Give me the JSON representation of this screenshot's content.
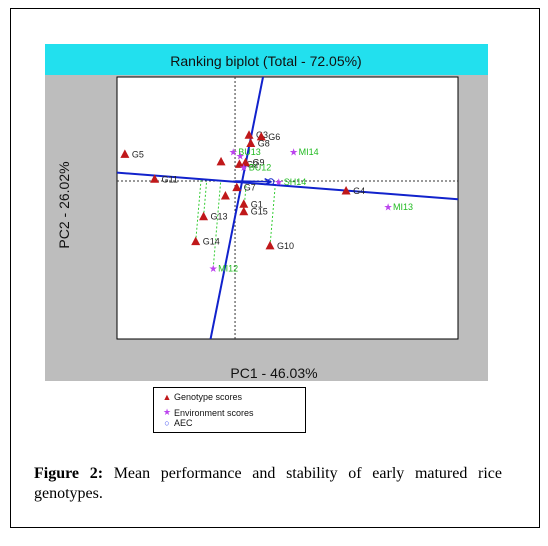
{
  "chart_data": {
    "type": "scatter",
    "title": "Ranking biplot (Total - 72.05%)",
    "xlabel": "PC1 - 46.03%",
    "ylabel": "PC2 - 26.02%",
    "xlim": [
      -1.35,
      2.55
    ],
    "ylim": [
      -1.9,
      1.25
    ],
    "colors": {
      "title_band": "#22e0ee",
      "outer_panel": "#bdbdbd",
      "genotype": "#c0181a",
      "environment": "#bb44ee",
      "environment_label": "#22bb22",
      "axis_line": "#1122cc",
      "projection": "#33cc33"
    },
    "genotypes": [
      {
        "label": "G1",
        "x": 0.1,
        "y": -0.28
      },
      {
        "label": "G2",
        "x": 0.05,
        "y": 0.2
      },
      {
        "label": "G3",
        "x": 0.16,
        "y": 0.55
      },
      {
        "label": "G4",
        "x": 1.27,
        "y": -0.12
      },
      {
        "label": "G5",
        "x": -1.26,
        "y": 0.32
      },
      {
        "label": "G6",
        "x": 0.3,
        "y": 0.53
      },
      {
        "label": "G7",
        "x": 0.02,
        "y": -0.08
      },
      {
        "label": "G8",
        "x": 0.18,
        "y": 0.45
      },
      {
        "label": "G9",
        "x": 0.12,
        "y": 0.22
      },
      {
        "label": "G10",
        "x": 0.4,
        "y": -0.78
      },
      {
        "label": "G11",
        "x": -0.92,
        "y": 0.02
      },
      {
        "label": "G13",
        "x": -0.36,
        "y": -0.43
      },
      {
        "label": "G14",
        "x": -0.45,
        "y": -0.73
      },
      {
        "label": "G15",
        "x": 0.1,
        "y": -0.37
      },
      {
        "label": "",
        "x": -0.16,
        "y": 0.23
      },
      {
        "label": "",
        "x": -0.11,
        "y": -0.18
      }
    ],
    "environments": [
      {
        "label": "BU13",
        "x": -0.02,
        "y": 0.35
      },
      {
        "label": "MI14",
        "x": 0.67,
        "y": 0.35
      },
      {
        "label": "BU12",
        "x": 0.1,
        "y": 0.16
      },
      {
        "label": "SH14",
        "x": 0.5,
        "y": -0.01
      },
      {
        "label": "MI13",
        "x": 1.75,
        "y": -0.31
      },
      {
        "label": "MI12",
        "x": -0.25,
        "y": -1.05
      },
      {
        "label": "",
        "x": 0.06,
        "y": 0.3
      }
    ],
    "aec_point": {
      "x": 0.41,
      "y": -0.01
    },
    "aec_abscissa": {
      "x1": -1.35,
      "y1": 0.1,
      "x2": 2.55,
      "y2": -0.22
    },
    "aec_ordinate": {
      "x1": -0.28,
      "y1": -1.9,
      "x2": 0.32,
      "y2": 1.25
    },
    "projections": [
      {
        "from": "G14",
        "x": -0.45,
        "y": -0.73
      },
      {
        "from": "G13",
        "x": -0.36,
        "y": -0.43
      },
      {
        "from": "G10",
        "x": 0.4,
        "y": -0.78
      },
      {
        "from": "G15",
        "x": 0.1,
        "y": -0.37
      },
      {
        "from": "MI12",
        "x": -0.25,
        "y": -1.05
      }
    ],
    "grid": false
  },
  "legend": {
    "genotype": "Genotype scores",
    "environment": "Environment scores",
    "aec": "AEC"
  },
  "caption": {
    "label": "Figure 2:",
    "text": "Mean performance and stability of early matured rice genotypes."
  }
}
